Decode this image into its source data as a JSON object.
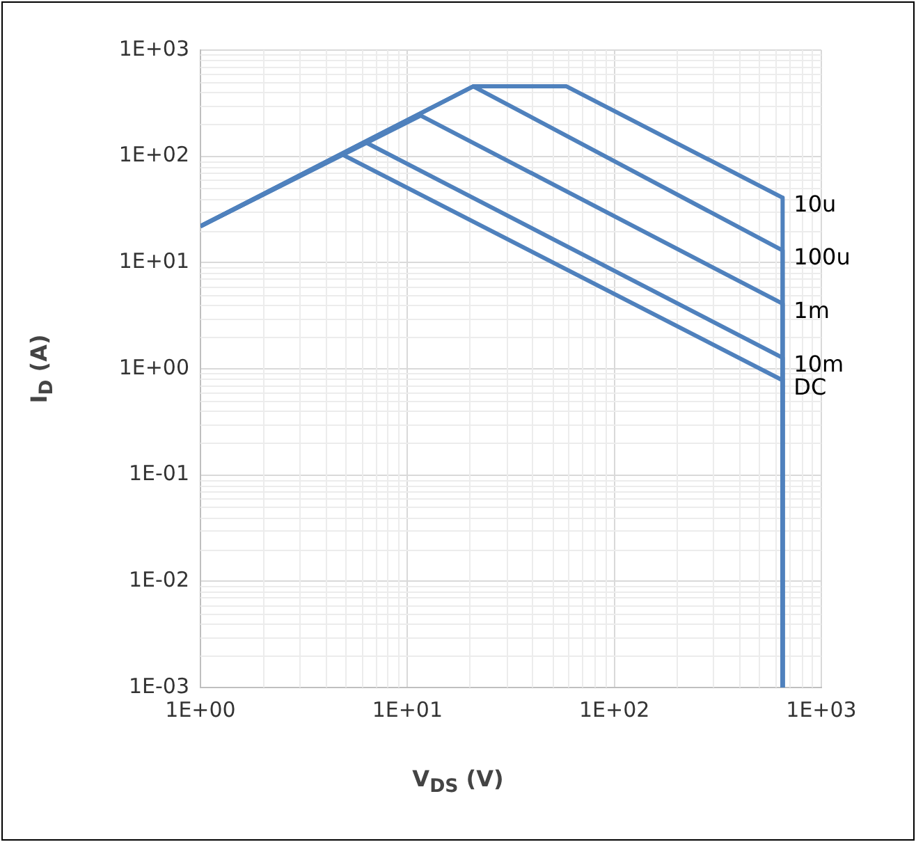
{
  "chart_data": {
    "type": "line",
    "xlabel": "V$_{DS}$ (V)",
    "ylabel": "I$_{D}$ (A)",
    "log": "xy",
    "grid": true,
    "legend": false,
    "marker": "none",
    "line_style": "solid",
    "xlim": [
      1,
      1000
    ],
    "ylim": [
      0.001,
      1000
    ],
    "xticks": [
      {
        "value": 1,
        "label": "1E+00"
      },
      {
        "value": 10,
        "label": "1E+01"
      },
      {
        "value": 100,
        "label": "1E+02"
      },
      {
        "value": 1000,
        "label": "1E+03"
      }
    ],
    "yticks": [
      {
        "value": 0.001,
        "label": "1E-03"
      },
      {
        "value": 0.01,
        "label": "1E-02"
      },
      {
        "value": 0.1,
        "label": "1E-01"
      },
      {
        "value": 1,
        "label": "1E+00"
      },
      {
        "value": 10,
        "label": "1E+01"
      },
      {
        "value": 100,
        "label": "1E+02"
      },
      {
        "value": 1000,
        "label": "1E+03"
      }
    ],
    "series": [
      {
        "name": "10u",
        "color": "#4f81bd",
        "x": [
          1,
          20.8,
          58.7,
          650,
          650
        ],
        "values": [
          22,
          456,
          456,
          40.8,
          0.001
        ]
      },
      {
        "name": "100u",
        "color": "#4f81bd",
        "x": [
          1,
          20.8,
          650,
          650
        ],
        "values": [
          22,
          456,
          13,
          0.001
        ]
      },
      {
        "name": "1m",
        "color": "#4f81bd",
        "x": [
          1,
          11.6,
          650,
          650
        ],
        "values": [
          22,
          242,
          4.1,
          0.001
        ]
      },
      {
        "name": "10m",
        "color": "#4f81bd",
        "x": [
          1,
          6.3,
          650,
          650
        ],
        "values": [
          22,
          135,
          1.27,
          0.001
        ]
      },
      {
        "name": "DC",
        "color": "#4f81bd",
        "x": [
          1,
          4.85,
          650,
          650
        ],
        "values": [
          22,
          104,
          0.78,
          0.001
        ]
      }
    ]
  }
}
